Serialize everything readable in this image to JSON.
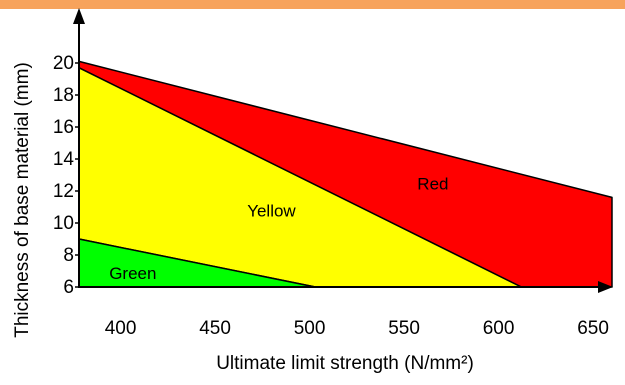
{
  "colors": {
    "accent_bar": "#f7a35c",
    "red": "#ff0000",
    "yellow": "#ffff00",
    "green": "#00ff00",
    "axis": "#000000"
  },
  "chart_data": {
    "type": "area",
    "xlabel": "Ultimate limit strength (N/mm²)",
    "ylabel": "Thickness of base material (mm)",
    "xlim": [
      378,
      660
    ],
    "ylim": [
      6,
      20
    ],
    "x_ticks": [
      400,
      450,
      500,
      550,
      600,
      650
    ],
    "y_ticks": [
      6,
      8,
      10,
      12,
      14,
      16,
      18,
      20
    ],
    "regions": [
      {
        "name": "Red",
        "color": "#ff0000",
        "label_at": [
          557,
          12.1
        ],
        "polygon": [
          [
            378,
            20.1
          ],
          [
            660,
            11.6
          ],
          [
            660,
            6
          ],
          [
            612,
            6
          ],
          [
            378,
            19.7
          ]
        ]
      },
      {
        "name": "Yellow",
        "color": "#ffff00",
        "label_at": [
          467,
          10.4
        ],
        "polygon": [
          [
            378,
            19.7
          ],
          [
            612,
            6
          ],
          [
            503,
            6
          ],
          [
            378,
            9.0
          ]
        ]
      },
      {
        "name": "Green",
        "color": "#00ff00",
        "label_at": [
          394,
          6.5
        ],
        "polygon": [
          [
            378,
            9.0
          ],
          [
            503,
            6
          ],
          [
            378,
            6
          ]
        ]
      }
    ]
  }
}
